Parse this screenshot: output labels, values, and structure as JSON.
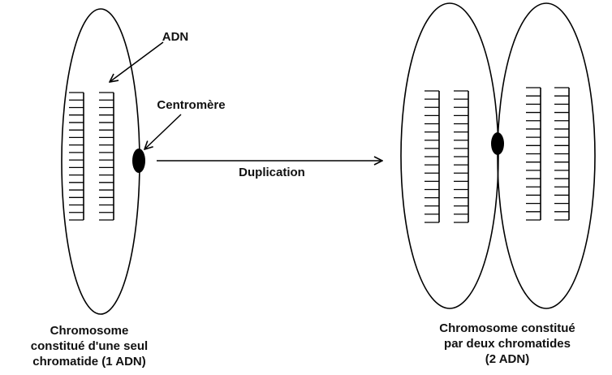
{
  "labels": {
    "adn": "ADN",
    "centromere": "Centromère",
    "duplication": "Duplication",
    "left_caption": [
      "Chromosome",
      "constitué d'une seul",
      "chromatide (1 ADN)"
    ],
    "right_caption": [
      "Chromosome constitué",
      "par deux chromatides",
      "(2 ADN)"
    ]
  },
  "colors": {
    "stroke": "#000000",
    "text": "#111111",
    "background": "#ffffff"
  }
}
